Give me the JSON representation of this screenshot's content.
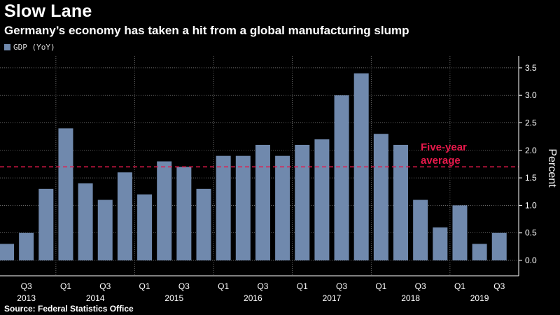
{
  "header": {
    "title": "Slow Lane",
    "subtitle": "Germany’s economy has taken a hit from a global manufacturing slump"
  },
  "legend": {
    "label": "GDP (YoY)"
  },
  "source": "Source: Federal Statistics Office",
  "colors": {
    "bar": "#7089ad",
    "background": "#000000",
    "average_line": "#e8194b",
    "grid": "#8c8c8c"
  },
  "chart_data": {
    "type": "bar",
    "categories": [
      "Q2 2013",
      "Q3 2013",
      "Q4 2013",
      "Q1 2014",
      "Q2 2014",
      "Q3 2014",
      "Q4 2014",
      "Q1 2015",
      "Q2 2015",
      "Q3 2015",
      "Q4 2015",
      "Q1 2016",
      "Q2 2016",
      "Q3 2016",
      "Q4 2016",
      "Q1 2017",
      "Q2 2017",
      "Q3 2017",
      "Q4 2017",
      "Q1 2018",
      "Q2 2018",
      "Q3 2018",
      "Q4 2018",
      "Q1 2019",
      "Q2 2019",
      "Q3 2019"
    ],
    "series": [
      {
        "name": "GDP (YoY)",
        "values": [
          0.3,
          0.5,
          1.3,
          2.4,
          1.4,
          1.1,
          1.6,
          1.2,
          1.8,
          1.7,
          1.3,
          1.9,
          1.9,
          2.1,
          1.9,
          2.1,
          2.2,
          3.0,
          3.4,
          2.3,
          2.1,
          1.1,
          0.6,
          1.0,
          0.3,
          0.5
        ]
      }
    ],
    "x_tick_labels": [
      {
        "label": "Q3",
        "index": 1
      },
      {
        "label": "Q1",
        "index": 3
      },
      {
        "label": "Q3",
        "index": 5
      },
      {
        "label": "Q1",
        "index": 7
      },
      {
        "label": "Q3",
        "index": 9
      },
      {
        "label": "Q1",
        "index": 11
      },
      {
        "label": "Q3",
        "index": 13
      },
      {
        "label": "Q1",
        "index": 15
      },
      {
        "label": "Q3",
        "index": 17
      },
      {
        "label": "Q1",
        "index": 19
      },
      {
        "label": "Q3",
        "index": 21
      },
      {
        "label": "Q1",
        "index": 23
      },
      {
        "label": "Q3",
        "index": 25
      }
    ],
    "years": [
      {
        "label": "2013",
        "start": 0,
        "end": 2
      },
      {
        "label": "2014",
        "start": 3,
        "end": 6
      },
      {
        "label": "2015",
        "start": 7,
        "end": 10
      },
      {
        "label": "2016",
        "start": 11,
        "end": 14
      },
      {
        "label": "2017",
        "start": 15,
        "end": 18
      },
      {
        "label": "2018",
        "start": 19,
        "end": 22
      },
      {
        "label": "2019",
        "start": 23,
        "end": 25
      }
    ],
    "y_ticks": [
      "0.0",
      "0.5",
      "1.0",
      "1.5",
      "2.0",
      "2.5",
      "3.0",
      "3.5"
    ],
    "ylim": [
      -0.05,
      3.75
    ],
    "ylabel": "Percent",
    "grid": true,
    "reference_line": {
      "value": 1.7,
      "label_lines": [
        "Five-year",
        "average"
      ]
    }
  }
}
